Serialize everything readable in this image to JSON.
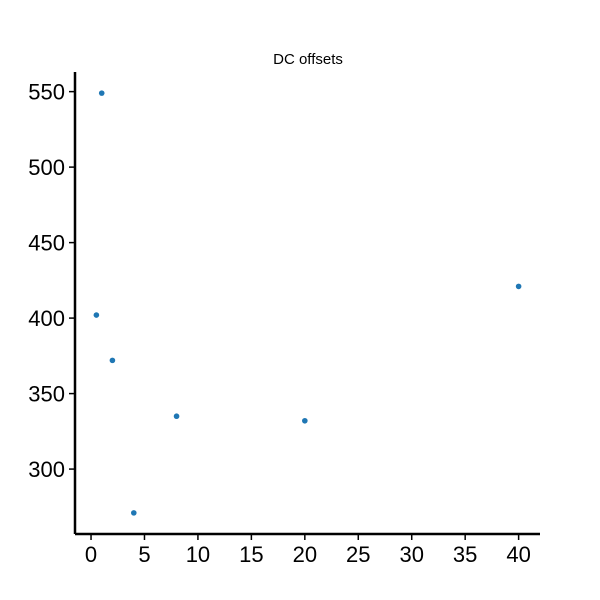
{
  "chart_data": {
    "type": "scatter",
    "title": "DC offsets",
    "xlabel": "",
    "ylabel": "",
    "xlim": [
      -1.5,
      42
    ],
    "ylim": [
      257,
      563
    ],
    "xticks": [
      0,
      5,
      10,
      15,
      20,
      25,
      30,
      35,
      40
    ],
    "yticks": [
      300,
      350,
      400,
      450,
      500,
      550
    ],
    "grid": false,
    "legend": "none",
    "series": [
      {
        "color": "#1f77b4",
        "points": [
          {
            "x": 0.5,
            "y": 402
          },
          {
            "x": 1,
            "y": 549
          },
          {
            "x": 2,
            "y": 372
          },
          {
            "x": 4,
            "y": 271
          },
          {
            "x": 8,
            "y": 335
          },
          {
            "x": 20,
            "y": 332
          },
          {
            "x": 40,
            "y": 421
          }
        ]
      }
    ]
  }
}
